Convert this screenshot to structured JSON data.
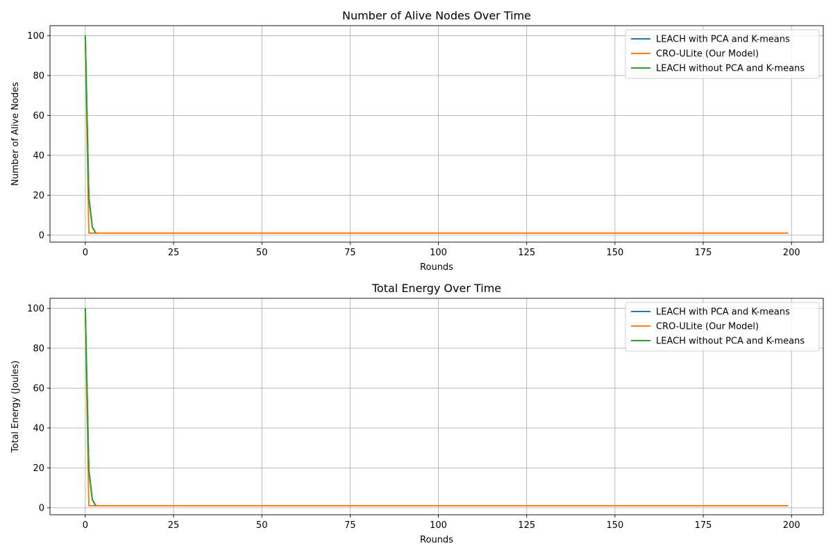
{
  "chart_data": [
    {
      "type": "line",
      "title": "Number of Alive Nodes Over Time",
      "xlabel": "Rounds",
      "ylabel": "Number of Alive Nodes",
      "xlim": [
        -10,
        209
      ],
      "ylim": [
        -3.5,
        105
      ],
      "xticks": [
        0,
        25,
        50,
        75,
        100,
        125,
        150,
        175,
        200
      ],
      "yticks": [
        0,
        20,
        40,
        60,
        80,
        100
      ],
      "grid": true,
      "legend_position": "top-right",
      "series": [
        {
          "name": "LEACH with PCA and K-means",
          "color": "#1f77b4",
          "x": [
            0,
            1,
            2,
            3,
            199
          ],
          "y": [
            100,
            19,
            4,
            1,
            1
          ]
        },
        {
          "name": "CRO-ULite (Our Model)",
          "color": "#ff7f0e",
          "x": [
            0,
            1,
            199
          ],
          "y": [
            100,
            1,
            1
          ]
        },
        {
          "name": "LEACH without PCA and K-means",
          "color": "#2ca02c",
          "x": [
            0,
            1,
            2,
            3
          ],
          "y": [
            100,
            19,
            4,
            1
          ]
        }
      ]
    },
    {
      "type": "line",
      "title": "Total Energy Over Time",
      "xlabel": "Rounds",
      "ylabel": "Total Energy (Joules)",
      "xlim": [
        -10,
        209
      ],
      "ylim": [
        -3.5,
        105
      ],
      "xticks": [
        0,
        25,
        50,
        75,
        100,
        125,
        150,
        175,
        200
      ],
      "yticks": [
        0,
        20,
        40,
        60,
        80,
        100
      ],
      "grid": true,
      "legend_position": "top-right",
      "series": [
        {
          "name": "LEACH with PCA and K-means",
          "color": "#1f77b4",
          "x": [
            0,
            1,
            2,
            3,
            199
          ],
          "y": [
            100,
            19,
            4,
            1,
            1
          ]
        },
        {
          "name": "CRO-ULite (Our Model)",
          "color": "#ff7f0e",
          "x": [
            0,
            1,
            199
          ],
          "y": [
            100,
            1,
            1
          ]
        },
        {
          "name": "LEACH without PCA and K-means",
          "color": "#2ca02c",
          "x": [
            0,
            1,
            2,
            3
          ],
          "y": [
            100,
            19,
            4,
            1
          ]
        }
      ]
    }
  ]
}
